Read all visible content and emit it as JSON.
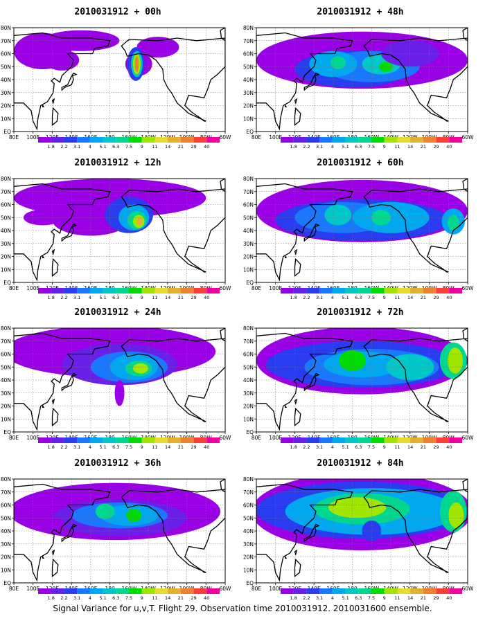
{
  "caption": "Signal Variance for u,v,T. Flight 29. Observation time 2010031912. 2010031600 ensemble.",
  "lat_labels": [
    "80N",
    "70N",
    "60N",
    "50N",
    "40N",
    "30N",
    "20N",
    "10N",
    "EQ"
  ],
  "lon_labels": [
    "80E",
    "100E",
    "120E",
    "140E",
    "160E",
    "180",
    "160W",
    "140W",
    "120W",
    "100W",
    "80W",
    "60W"
  ],
  "colorbar": {
    "labels": [
      "1.8",
      "2.2",
      "3.1",
      "4",
      "5.1",
      "6.3",
      "7.5",
      "9",
      "11",
      "14",
      "21",
      "29",
      "40"
    ],
    "colors": [
      "#9a00e6",
      "#6a1fe8",
      "#2a3cf0",
      "#1a78ff",
      "#00a8f0",
      "#00c8c8",
      "#00d890",
      "#00dc00",
      "#a0e600",
      "#e6dc30",
      "#e6af2d",
      "#f0822d",
      "#fa3c3c",
      "#f000a0"
    ]
  },
  "panels": [
    {
      "title": "2010031912 + 00h",
      "forecast_hour": 0
    },
    {
      "title": "2010031912 + 48h",
      "forecast_hour": 48
    },
    {
      "title": "2010031912 + 12h",
      "forecast_hour": 12
    },
    {
      "title": "2010031912 + 60h",
      "forecast_hour": 60
    },
    {
      "title": "2010031912 + 24h",
      "forecast_hour": 24
    },
    {
      "title": "2010031912 + 72h",
      "forecast_hour": 72
    },
    {
      "title": "2010031912 + 36h",
      "forecast_hour": 36
    },
    {
      "title": "2010031912 + 84h",
      "forecast_hour": 84
    }
  ]
}
